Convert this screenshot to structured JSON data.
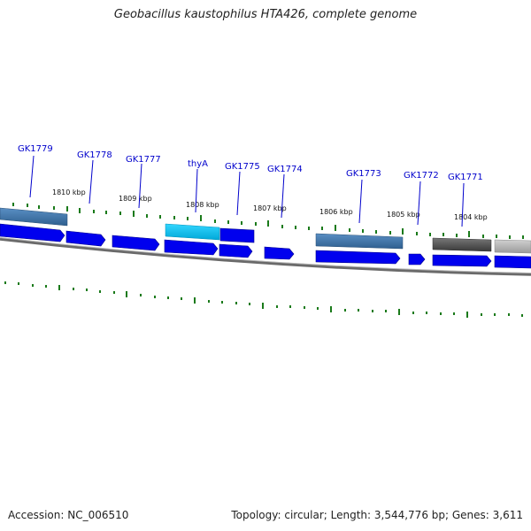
{
  "title": "Geobacillus kaustophilus HTA426, complete genome",
  "footer": {
    "accession": "Accession: NC_006510",
    "summary": "Topology: circular; Length: 3,544,776 bp; Genes: 3,611"
  },
  "colors": {
    "cds": "#0000ee",
    "cds_light": "#1a1aff",
    "thyA": "#00bfe8",
    "rna_blue": "#3b6e9e",
    "gray_dark": "#555555",
    "gray_light": "#b0b0b0",
    "backbone": "#808080",
    "tick": "#1a7a1a",
    "label": "#0000cc"
  },
  "kbp_ticks": [
    {
      "label": "1810 kbp"
    },
    {
      "label": "1809 kbp"
    },
    {
      "label": "1808 kbp"
    },
    {
      "label": "1807 kbp"
    },
    {
      "label": "1806 kbp"
    },
    {
      "label": "1805 kbp"
    },
    {
      "label": "1804 kbp"
    }
  ],
  "genes": [
    {
      "name": "GK1779"
    },
    {
      "name": "GK1778"
    },
    {
      "name": "GK1777"
    },
    {
      "name": "thyA"
    },
    {
      "name": "GK1775"
    },
    {
      "name": "GK1774"
    },
    {
      "name": "GK1773"
    },
    {
      "name": "GK1772"
    },
    {
      "name": "GK1771"
    }
  ]
}
